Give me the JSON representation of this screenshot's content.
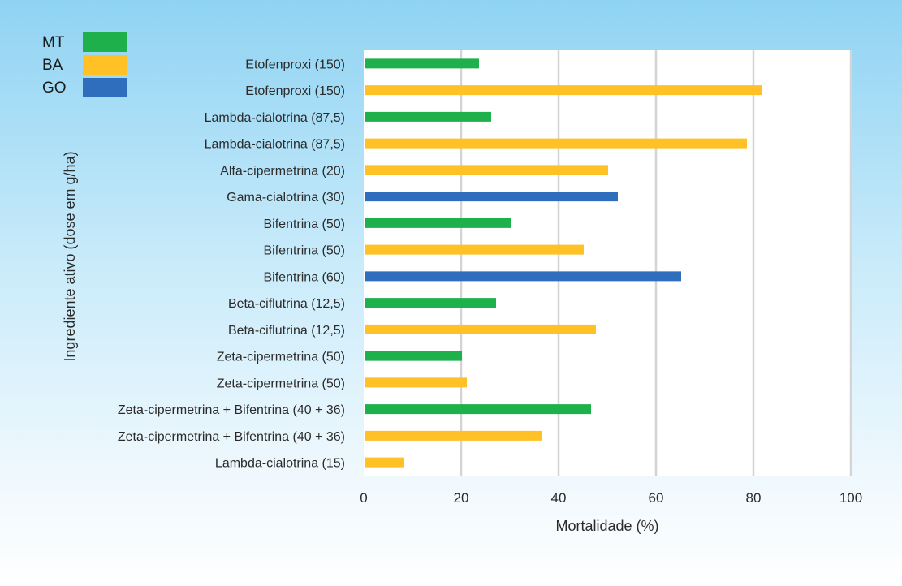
{
  "colors": {
    "MT": "#1db04b",
    "BA": "#ffc125",
    "GO": "#2f6ebd",
    "plot_bg": "#ffffff",
    "grid": "#d4d4d4"
  },
  "chart_data": {
    "type": "bar",
    "orientation": "horizontal",
    "xlabel": "Mortalidade (%)",
    "ylabel": "Ingrediente ativo (dose em g/ha)",
    "xlim": [
      0,
      100
    ],
    "xticks": [
      "0",
      "20",
      "40",
      "60",
      "80",
      "100"
    ],
    "grid": "vertical",
    "legend": {
      "placement": "top-left",
      "entries": [
        {
          "name": "MT",
          "color": "#1db04b"
        },
        {
          "name": "BA",
          "color": "#ffc125"
        },
        {
          "name": "GO",
          "color": "#2f6ebd"
        }
      ]
    },
    "bars": [
      {
        "label": "Etofenproxi (150)",
        "group": "MT",
        "value": 23.5
      },
      {
        "label": "Etofenproxi (150)",
        "group": "BA",
        "value": 81.5
      },
      {
        "label": "Lambda-cialotrina (87,5)",
        "group": "MT",
        "value": 26
      },
      {
        "label": "Lambda-cialotrina (87,5)",
        "group": "BA",
        "value": 78.5
      },
      {
        "label": "Alfa-cipermetrina (20)",
        "group": "BA",
        "value": 50
      },
      {
        "label": "Gama-cialotrina (30)",
        "group": "GO",
        "value": 52
      },
      {
        "label": "Bifentrina (50)",
        "group": "MT",
        "value": 30
      },
      {
        "label": "Bifentrina (50)",
        "group": "BA",
        "value": 45
      },
      {
        "label": "Bifentrina (60)",
        "group": "GO",
        "value": 65
      },
      {
        "label": "Beta-ciflutrina (12,5)",
        "group": "MT",
        "value": 27
      },
      {
        "label": "Beta-ciflutrina (12,5)",
        "group": "BA",
        "value": 47.5
      },
      {
        "label": "Zeta-cipermetrina (50)",
        "group": "MT",
        "value": 20
      },
      {
        "label": "Zeta-cipermetrina (50)",
        "group": "BA",
        "value": 21
      },
      {
        "label": "Zeta-cipermetrina + Bifentrina (40 + 36)",
        "group": "MT",
        "value": 46.5
      },
      {
        "label": "Zeta-cipermetrina + Bifentrina (40 + 36)",
        "group": "BA",
        "value": 36.5
      },
      {
        "label": "Lambda-cialotrina (15)",
        "group": "BA",
        "value": 8
      }
    ]
  }
}
